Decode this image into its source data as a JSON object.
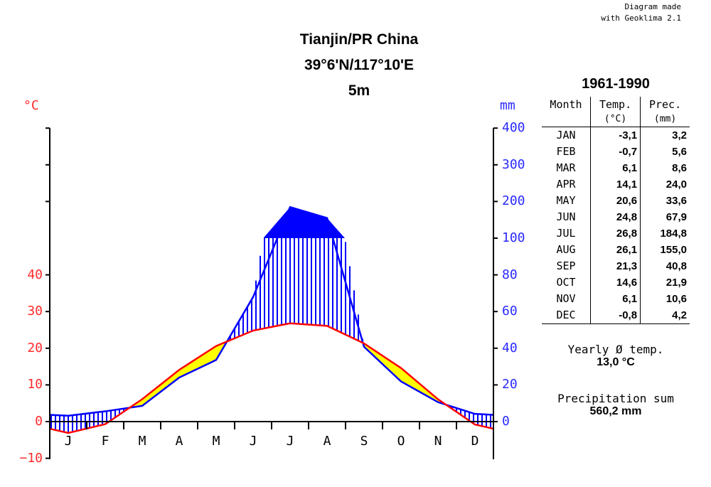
{
  "credit": {
    "line1": "Diagram made",
    "line2": "with Geoklima 2.1"
  },
  "station": {
    "name": "Tianjin/PR China",
    "coords": "39°6'N/117°10'E",
    "elevation": "5m"
  },
  "period": "1961-1990",
  "table": {
    "headers": {
      "month": "Month",
      "temp": "Temp.",
      "temp_unit": "(°C)",
      "prec": "Prec.",
      "prec_unit": "(mm)"
    },
    "rows": [
      {
        "month": "JAN",
        "temp": "-3,1",
        "prec": "3,2"
      },
      {
        "month": "FEB",
        "temp": "-0,7",
        "prec": "5,6"
      },
      {
        "month": "MAR",
        "temp": "6,1",
        "prec": "8,6"
      },
      {
        "month": "APR",
        "temp": "14,1",
        "prec": "24,0"
      },
      {
        "month": "MAY",
        "temp": "20,6",
        "prec": "33,6"
      },
      {
        "month": "JUN",
        "temp": "24,8",
        "prec": "67,9"
      },
      {
        "month": "JUL",
        "temp": "26,8",
        "prec": "184,8"
      },
      {
        "month": "AUG",
        "temp": "26,1",
        "prec": "155,0"
      },
      {
        "month": "SEP",
        "temp": "21,3",
        "prec": "40,8"
      },
      {
        "month": "OCT",
        "temp": "14,6",
        "prec": "21,9"
      },
      {
        "month": "NOV",
        "temp": "6,1",
        "prec": "10,6"
      },
      {
        "month": "DEC",
        "temp": "-0,8",
        "prec": "4,2"
      }
    ]
  },
  "summary": {
    "yearly_temp_label": "Yearly Ø temp.",
    "yearly_temp_value": "13,0 °C",
    "prec_sum_label": "Precipitation sum",
    "prec_sum_value": "560,2 mm"
  },
  "chart_data": {
    "type": "line",
    "categories": [
      "J",
      "F",
      "M",
      "A",
      "M",
      "J",
      "J",
      "A",
      "S",
      "O",
      "N",
      "D"
    ],
    "series": [
      {
        "values": [
          -3.1,
          -0.7,
          6.1,
          14.1,
          20.6,
          24.8,
          26.8,
          26.1,
          21.3,
          14.6,
          6.1,
          -0.8
        ]
      },
      {
        "values": [
          3.2,
          5.6,
          8.6,
          24.0,
          33.6,
          67.9,
          184.8,
          155.0,
          40.8,
          21.9,
          10.6,
          4.2
        ]
      }
    ],
    "left_axis": {
      "unit": "°C",
      "ticks": [
        "40",
        "30",
        "20",
        "10",
        "0",
        "−10"
      ],
      "range": [
        -10,
        40
      ]
    },
    "right_axis": {
      "unit": "mm",
      "ticks": [
        "400",
        "300",
        "200",
        "100",
        "80",
        "60",
        "40",
        "20",
        "0"
      ],
      "range": [
        0,
        400
      ]
    },
    "colors": {
      "temperature": "#ff0000",
      "precipitation": "#0000ff",
      "arid": "#ffff00"
    }
  }
}
